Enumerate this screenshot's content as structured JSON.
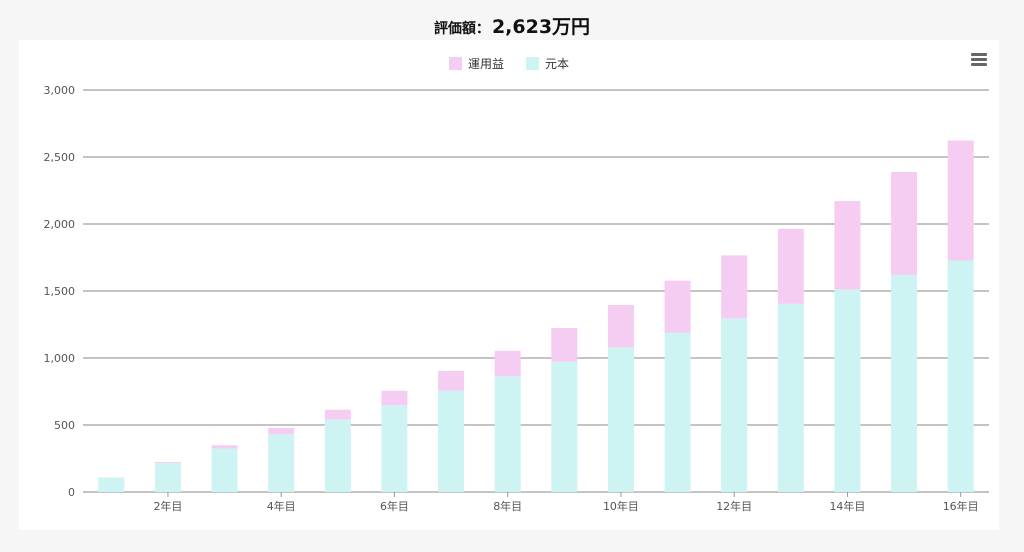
{
  "header": {
    "label": "評価額：",
    "value": "2,623万円"
  },
  "menu": {
    "icon": "hamburger-menu-icon"
  },
  "colors": {
    "profit": "#f5cdf3",
    "principal": "#cdf3f2",
    "grid": "#8a8a8a"
  },
  "chart_data": {
    "type": "bar",
    "stacked": true,
    "categories": [
      "1年目",
      "2年目",
      "3年目",
      "4年目",
      "5年目",
      "6年目",
      "7年目",
      "8年目",
      "9年目",
      "10年目",
      "11年目",
      "12年目",
      "13年目",
      "14年目",
      "15年目",
      "16年目"
    ],
    "xtick_labels": [
      "2年目",
      "4年目",
      "6年目",
      "8年目",
      "10年目",
      "12年目",
      "14年目",
      "16年目"
    ],
    "series": [
      {
        "name": "元本",
        "color": "#cdf3f2",
        "values": [
          108,
          216,
          324,
          432,
          540,
          648,
          756,
          864,
          972,
          1080,
          1188,
          1296,
          1404,
          1512,
          1620,
          1728
        ]
      },
      {
        "name": "運用益",
        "color": "#f5cdf3",
        "values": [
          0,
          8,
          25,
          46,
          74,
          108,
          147,
          190,
          252,
          315,
          389,
          470,
          560,
          659,
          768,
          895
        ]
      }
    ],
    "legend_order": [
      "運用益",
      "元本"
    ],
    "ylim": [
      0,
      3000
    ],
    "yticks": [
      0,
      500,
      1000,
      1500,
      2000,
      2500,
      3000
    ],
    "ytick_labels": [
      "0",
      "500",
      "1,000",
      "1,500",
      "2,000",
      "2,500",
      "3,000"
    ],
    "grid": true,
    "legend_position": "top-center",
    "xlabel": "",
    "ylabel": ""
  }
}
